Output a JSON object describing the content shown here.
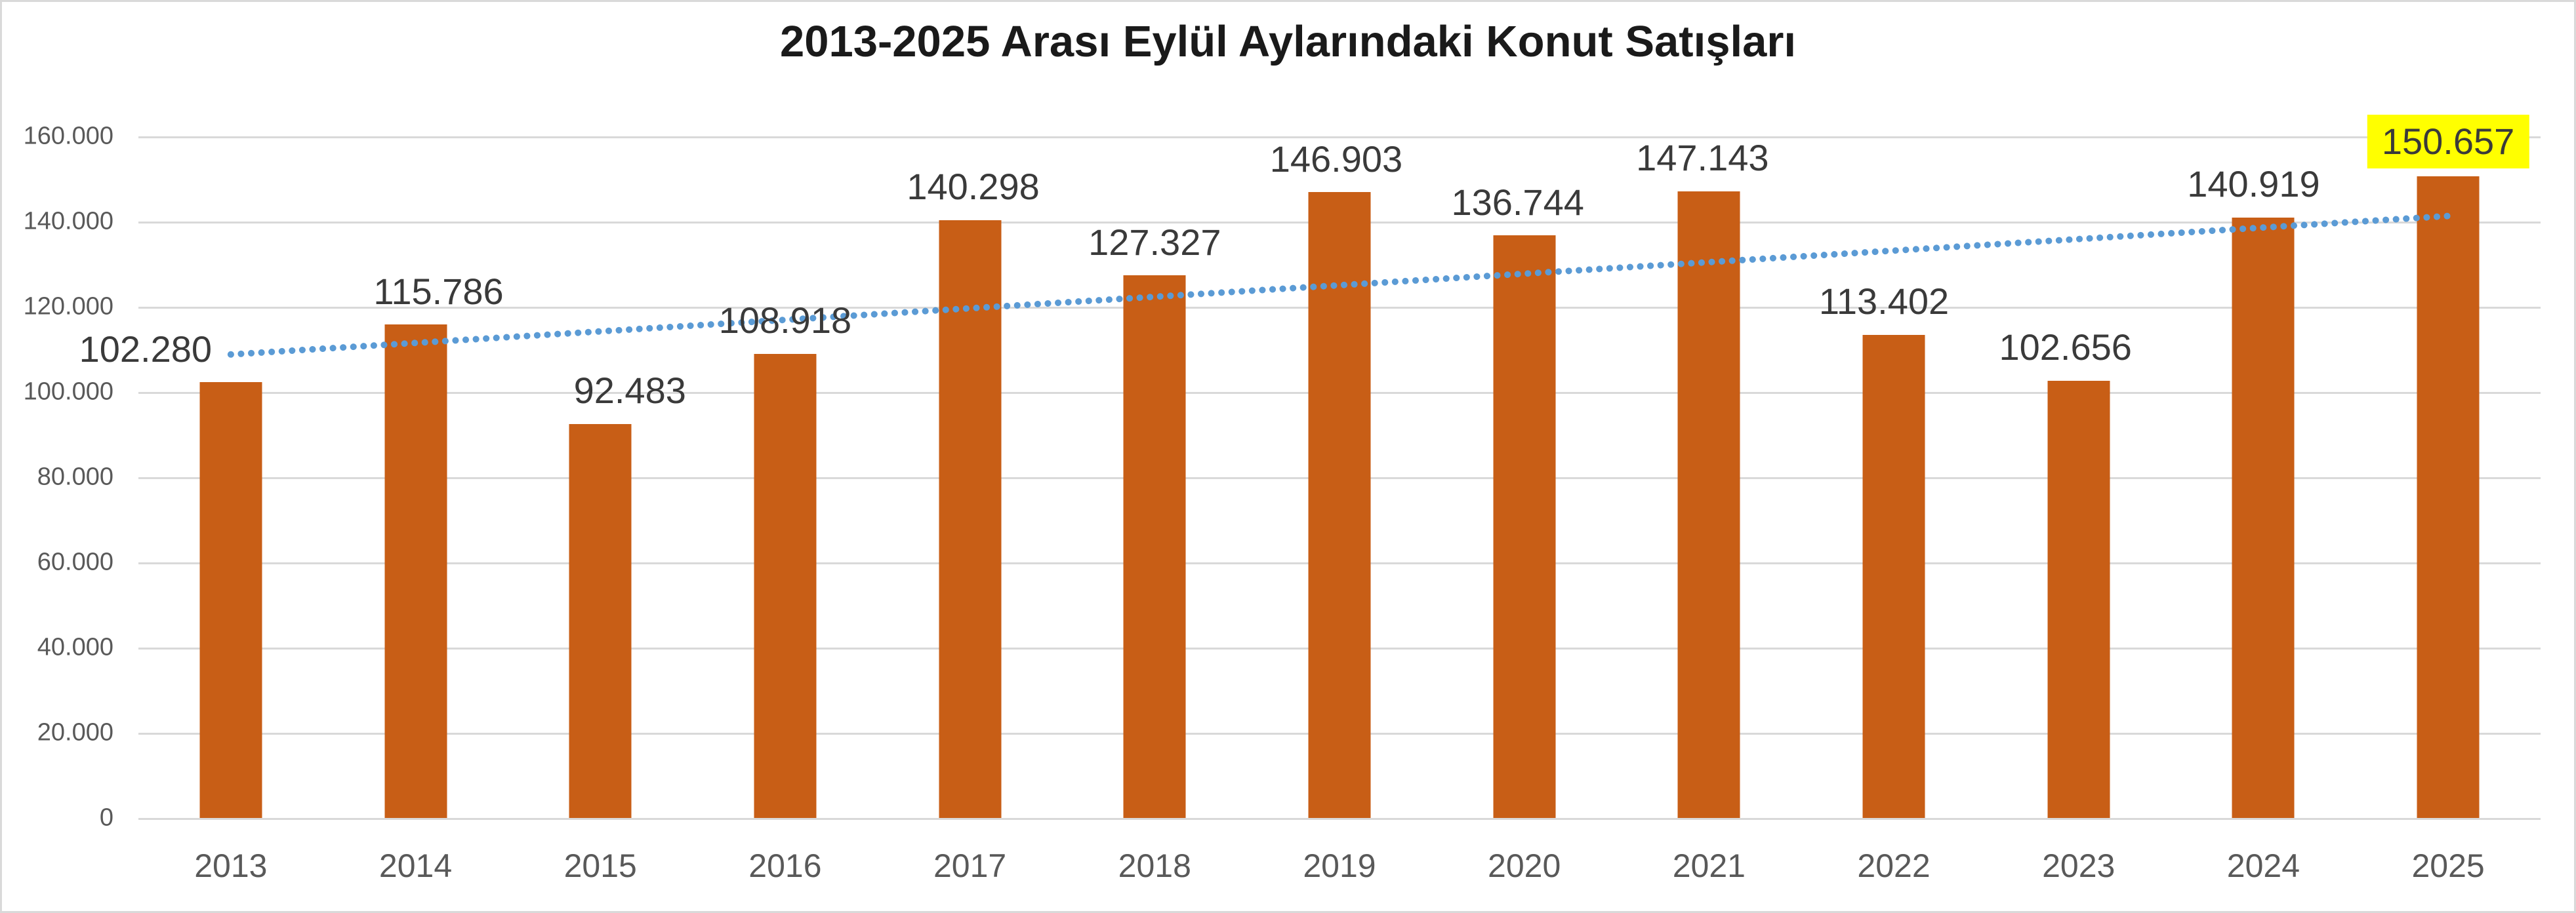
{
  "chart_data": {
    "type": "bar",
    "title": "2013-2025 Arası Eylül Aylarındaki Konut Satışları",
    "categories": [
      "2013",
      "2014",
      "2015",
      "2016",
      "2017",
      "2018",
      "2019",
      "2020",
      "2021",
      "2022",
      "2023",
      "2024",
      "2025"
    ],
    "values": [
      102280,
      115786,
      92483,
      108918,
      140298,
      127327,
      146903,
      136744,
      147143,
      113402,
      102656,
      140919,
      150657
    ],
    "value_labels": [
      "102.280",
      "115.786",
      "92.483",
      "108.918",
      "140.298",
      "127.327",
      "146.903",
      "136.744",
      "147.143",
      "113.402",
      "102.656",
      "140.919",
      "150.657"
    ],
    "highlighted_index": 12,
    "highlight_color": "#ffff00",
    "bar_color": "#c85e16",
    "grid": true,
    "grid_color": "#d9d9d9",
    "legend": false,
    "label_color": "#3a3a3a",
    "axis_label_color": "#595959",
    "y_axis": {
      "min": 0,
      "max": 160000,
      "tick_interval": 20000,
      "tick_labels": [
        "0",
        "20.000",
        "40.000",
        "60.000",
        "80.000",
        "100.000",
        "120.000",
        "140.000",
        "160.000"
      ]
    },
    "trendline": {
      "kind": "linear",
      "style": "dotted",
      "color": "#5b9bd5",
      "start_value": 108800,
      "end_value": 141300
    },
    "label_dx": [
      -130,
      35,
      45,
      0,
      5,
      0,
      -5,
      -10,
      -10,
      -15,
      -20,
      -15,
      0
    ]
  }
}
